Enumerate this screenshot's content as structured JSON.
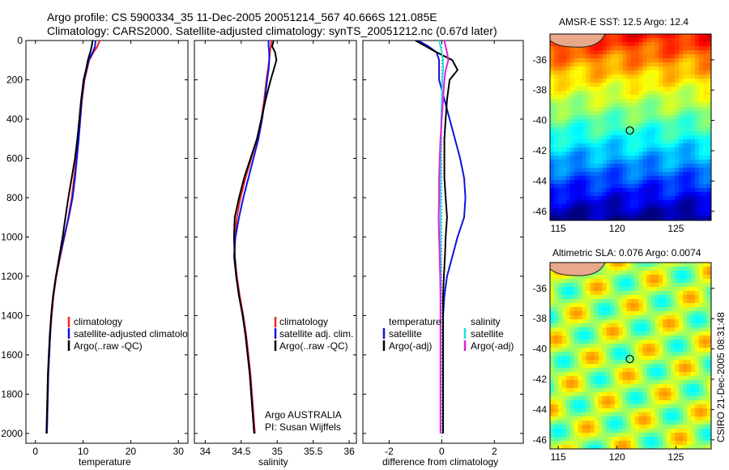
{
  "header": {
    "line1": "Argo profile: CS 5900334_35 11-Dec-2005 20051214_567 40.666S 121.085E",
    "line2": "Climatology: CARS2000. Satellite-adjusted climatology: synTS_20051212.nc (0.67d later)"
  },
  "colors": {
    "climatology": "#ee2222",
    "satellite": "#1111dd",
    "argo": "#000000",
    "sal_satellite": "#22dddd",
    "sal_argo": "#dd22dd"
  },
  "chart_data": [
    {
      "type": "line",
      "panel": "temperature",
      "xlabel": "temperature",
      "ylabel": "",
      "xlim": [
        -2,
        32
      ],
      "ylim": [
        2050,
        0
      ],
      "xticks": [
        "0",
        "10",
        "20",
        "30"
      ],
      "yticks": [
        "0",
        "200",
        "400",
        "600",
        "800",
        "1000",
        "1200",
        "1400",
        "1600",
        "1800",
        "2000"
      ],
      "legend": [
        "climatology",
        "satellite-adjusted climatology",
        "Argo(..raw -QC)"
      ],
      "series": [
        {
          "name": "climatology",
          "color": "climatology",
          "y": [
            0,
            30,
            60,
            100,
            150,
            200,
            300,
            400,
            500,
            600,
            700,
            800,
            900,
            1000,
            1100,
            1200,
            1300,
            1400,
            1500,
            1600,
            1700,
            1800,
            1900,
            2000
          ],
          "x": [
            13.5,
            13.0,
            12.2,
            11.3,
            10.8,
            10.3,
            9.8,
            9.4,
            9.0,
            8.6,
            8.1,
            7.6,
            6.9,
            6.1,
            5.2,
            4.4,
            3.8,
            3.4,
            3.1,
            2.9,
            2.7,
            2.6,
            2.5,
            2.4
          ]
        },
        {
          "name": "satellite-adjusted climatology",
          "color": "satellite",
          "y": [
            0,
            30,
            60,
            100,
            150,
            200,
            300,
            400,
            500,
            600,
            700,
            800,
            900,
            1000,
            1100,
            1200,
            1300,
            1400,
            1500,
            1600,
            1700,
            1800,
            1900,
            2000
          ],
          "x": [
            12.6,
            12.5,
            12.0,
            11.2,
            10.7,
            10.2,
            9.7,
            9.4,
            9.1,
            8.7,
            8.3,
            7.8,
            7.0,
            6.0,
            5.1,
            4.3,
            3.7,
            3.3,
            3.1,
            2.9,
            2.7,
            2.6,
            2.5,
            2.4
          ]
        },
        {
          "name": "Argo(..raw -QC)",
          "color": "argo",
          "y": [
            0,
            30,
            60,
            100,
            150,
            200,
            300,
            400,
            500,
            600,
            700,
            800,
            900,
            1000,
            1100,
            1200,
            1300,
            1400,
            1500,
            1600,
            1700,
            1800,
            1900,
            2000
          ],
          "x": [
            12.0,
            11.8,
            11.5,
            11.0,
            10.6,
            10.1,
            9.6,
            9.2,
            8.8,
            8.3,
            7.6,
            6.9,
            6.3,
            5.7,
            5.0,
            4.3,
            3.7,
            3.3,
            3.0,
            2.8,
            2.6,
            2.5,
            2.4,
            2.3
          ]
        }
      ]
    },
    {
      "type": "line",
      "panel": "salinity",
      "xlabel": "salinity",
      "ylabel": "",
      "xlim": [
        33.85,
        36.1
      ],
      "ylim": [
        2050,
        0
      ],
      "xticks": [
        "34",
        "34.5",
        "35",
        "35.5",
        "36"
      ],
      "legend": [
        "climatology",
        "satellite adj. clim.",
        "Argo(..raw -QC)"
      ],
      "annotations": [
        "Argo AUSTRALIA",
        "PI: Susan Wijffels"
      ],
      "series": [
        {
          "name": "climatology",
          "color": "climatology",
          "y": [
            0,
            30,
            60,
            100,
            150,
            200,
            300,
            400,
            500,
            600,
            700,
            800,
            900,
            1000,
            1100,
            1200,
            1300,
            1400,
            1500,
            1600,
            1700,
            1800,
            1900,
            2000
          ],
          "x": [
            34.92,
            34.91,
            34.9,
            34.89,
            34.87,
            34.85,
            34.82,
            34.78,
            34.72,
            34.64,
            34.56,
            34.49,
            34.44,
            34.41,
            34.41,
            34.44,
            34.48,
            34.53,
            34.57,
            34.6,
            34.63,
            34.65,
            34.67,
            34.69
          ]
        },
        {
          "name": "satellite adj. clim.",
          "color": "satellite",
          "y": [
            0,
            30,
            60,
            100,
            150,
            200,
            300,
            400,
            500,
            600,
            700,
            800,
            900,
            1000,
            1100,
            1200,
            1300,
            1400,
            1500,
            1600,
            1700,
            1800,
            1900,
            2000
          ],
          "x": [
            34.88,
            34.88,
            34.89,
            34.89,
            34.88,
            34.86,
            34.83,
            34.79,
            34.74,
            34.67,
            34.6,
            34.53,
            34.47,
            34.42,
            34.4,
            34.43,
            34.47,
            34.52,
            34.56,
            34.59,
            34.62,
            34.64,
            34.66,
            34.68
          ]
        },
        {
          "name": "Argo(..raw -QC)",
          "color": "argo",
          "y": [
            0,
            30,
            60,
            100,
            150,
            200,
            300,
            400,
            500,
            600,
            700,
            800,
            900,
            1000,
            1100,
            1200,
            1300,
            1400,
            1500,
            1600,
            1700,
            1800,
            1900,
            2000
          ],
          "x": [
            34.95,
            34.93,
            34.97,
            34.99,
            34.95,
            34.91,
            34.84,
            34.78,
            34.72,
            34.63,
            34.54,
            34.47,
            34.41,
            34.4,
            34.41,
            34.43,
            34.47,
            34.52,
            34.56,
            34.59,
            34.62,
            34.64,
            34.66,
            34.68
          ]
        }
      ]
    },
    {
      "type": "line",
      "panel": "difference",
      "xlabel": "difference from climatology",
      "ylabel": "",
      "xlim": [
        -3,
        3.1
      ],
      "ylim": [
        2050,
        0
      ],
      "xticks": [
        "-2",
        "0",
        "2"
      ],
      "legend_left_title": "temperature",
      "legend_right_title": "salinity",
      "legend": [
        "satellite",
        "Argo(-adj)",
        "satellite",
        "Argo(-adj)"
      ],
      "series": [
        {
          "name": "temperature satellite",
          "color": "satellite",
          "y": [
            0,
            30,
            60,
            100,
            150,
            200,
            300,
            400,
            500,
            600,
            700,
            800,
            900,
            1000,
            1100,
            1200,
            1300,
            1400,
            1500,
            1600,
            1700,
            1800,
            1900,
            2000
          ],
          "x": [
            -0.9,
            -0.5,
            -0.2,
            -0.1,
            -0.1,
            -0.1,
            0.1,
            0.3,
            0.5,
            0.7,
            0.85,
            0.9,
            0.85,
            0.6,
            0.4,
            0.2,
            0.1,
            0.05,
            0.05,
            0.05,
            0.05,
            0.05,
            0.05,
            0.05
          ]
        },
        {
          "name": "temperature Argo(-adj)",
          "color": "argo",
          "y": [
            0,
            30,
            60,
            100,
            150,
            200,
            300,
            400,
            500,
            600,
            700,
            800,
            900,
            1000,
            1100,
            1200,
            1300,
            1400,
            1500,
            1600,
            1700,
            1800,
            1900,
            2000
          ],
          "x": [
            -1.0,
            -0.6,
            -0.2,
            0.4,
            0.6,
            0.3,
            0.2,
            0.15,
            0.1,
            0.1,
            0.1,
            0.15,
            0.2,
            0.15,
            0.12,
            0.08,
            0.05,
            0.05,
            0.05,
            0.05,
            0.05,
            0.05,
            0.05,
            0.05
          ]
        },
        {
          "name": "salinity satellite",
          "color": "sal_satellite",
          "y": [
            0,
            30,
            60,
            100,
            150,
            200,
            300,
            400,
            500,
            600,
            700,
            800,
            900,
            1000,
            1100,
            1200,
            1300,
            1400,
            1500,
            1600,
            1700,
            1800,
            1900,
            2000
          ],
          "x": [
            -0.1,
            -0.05,
            0.0,
            0.05,
            0.05,
            0.02,
            0.0,
            -0.02,
            -0.03,
            -0.04,
            -0.05,
            -0.05,
            -0.05,
            -0.05,
            -0.04,
            -0.04,
            -0.04,
            -0.04,
            -0.04,
            -0.04,
            -0.04,
            -0.04,
            -0.04,
            -0.04
          ]
        },
        {
          "name": "salinity Argo(-adj)",
          "color": "sal_argo",
          "y": [
            0,
            30,
            60,
            100,
            150,
            200,
            300,
            400,
            500,
            600,
            700,
            800,
            900,
            1000,
            1100,
            1200,
            1300,
            1400,
            1500,
            1600,
            1700,
            1800,
            1900,
            2000
          ],
          "x": [
            0.1,
            0.15,
            0.2,
            0.25,
            0.15,
            0.1,
            0.05,
            0.0,
            -0.05,
            -0.08,
            -0.1,
            -0.1,
            -0.12,
            -0.1,
            -0.08,
            -0.06,
            -0.05,
            -0.05,
            -0.05,
            -0.05,
            -0.05,
            -0.05,
            -0.05,
            -0.05
          ]
        }
      ]
    },
    {
      "type": "heatmap",
      "panel": "sst_map",
      "title": "AMSR-E SST: 12.5 Argo: 12.4",
      "xlim": [
        114.3,
        128
      ],
      "ylim": [
        -46.6,
        -34.3
      ],
      "xticks": [
        "115",
        "120",
        "125"
      ],
      "yticks": [
        "-36",
        "-38",
        "-40",
        "-42",
        "-44",
        "-46"
      ],
      "marker": {
        "lon": 121.085,
        "lat": -40.666
      }
    },
    {
      "type": "heatmap",
      "panel": "sla_map",
      "title": "Altimetric SLA: 0.076 Argo: 0.0074",
      "xlim": [
        114.3,
        128
      ],
      "ylim": [
        -46.6,
        -34.3
      ],
      "xticks": [
        "115",
        "120",
        "125"
      ],
      "yticks": [
        "-36",
        "-38",
        "-40",
        "-42",
        "-44",
        "-46"
      ],
      "marker": {
        "lon": 121.085,
        "lat": -40.666
      }
    }
  ],
  "credit": "CSIRO 21-Dec-2005 08:31:48"
}
